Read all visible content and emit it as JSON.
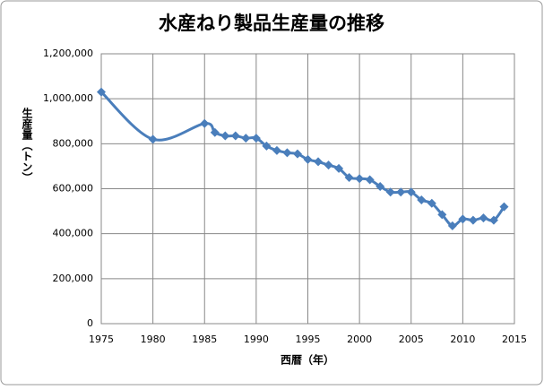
{
  "chart_data": {
    "type": "line",
    "title": "水産ねり製品生産量の推移",
    "x_label": "西暦（年）",
    "y_label": "生産量（トン）",
    "x": [
      1975,
      1980,
      1985,
      1986,
      1987,
      1988,
      1989,
      1990,
      1991,
      1992,
      1993,
      1994,
      1995,
      1996,
      1997,
      1998,
      1999,
      2000,
      2001,
      2002,
      2003,
      2004,
      2005,
      2006,
      2007,
      2008,
      2009,
      2010,
      2011,
      2012,
      2013,
      2014
    ],
    "series": [
      {
        "name": "生産量",
        "color": "#4a7ebb",
        "values": [
          1030000,
          820000,
          890000,
          850000,
          835000,
          835000,
          825000,
          825000,
          790000,
          770000,
          760000,
          755000,
          730000,
          720000,
          705000,
          690000,
          650000,
          645000,
          640000,
          610000,
          585000,
          585000,
          585000,
          550000,
          535000,
          485000,
          435000,
          465000,
          460000,
          470000,
          460000,
          520000
        ]
      }
    ],
    "xlim": [
      1975,
      2015
    ],
    "xticks": [
      1975,
      1980,
      1985,
      1990,
      1995,
      2000,
      2005,
      2010,
      2015
    ],
    "ylim": [
      0,
      1200000
    ],
    "yticks": [
      0,
      {
        "value": 200000,
        "label": "200,000"
      },
      {
        "value": 400000,
        "label": "400,000"
      },
      {
        "value": 600000,
        "label": "600,000"
      },
      {
        "value": 800000,
        "label": "800,000"
      },
      {
        "value": 1000000,
        "label": "1,000,000"
      },
      {
        "value": 1200000,
        "label": "1,200,000"
      }
    ],
    "grid": true,
    "smooth": true
  }
}
